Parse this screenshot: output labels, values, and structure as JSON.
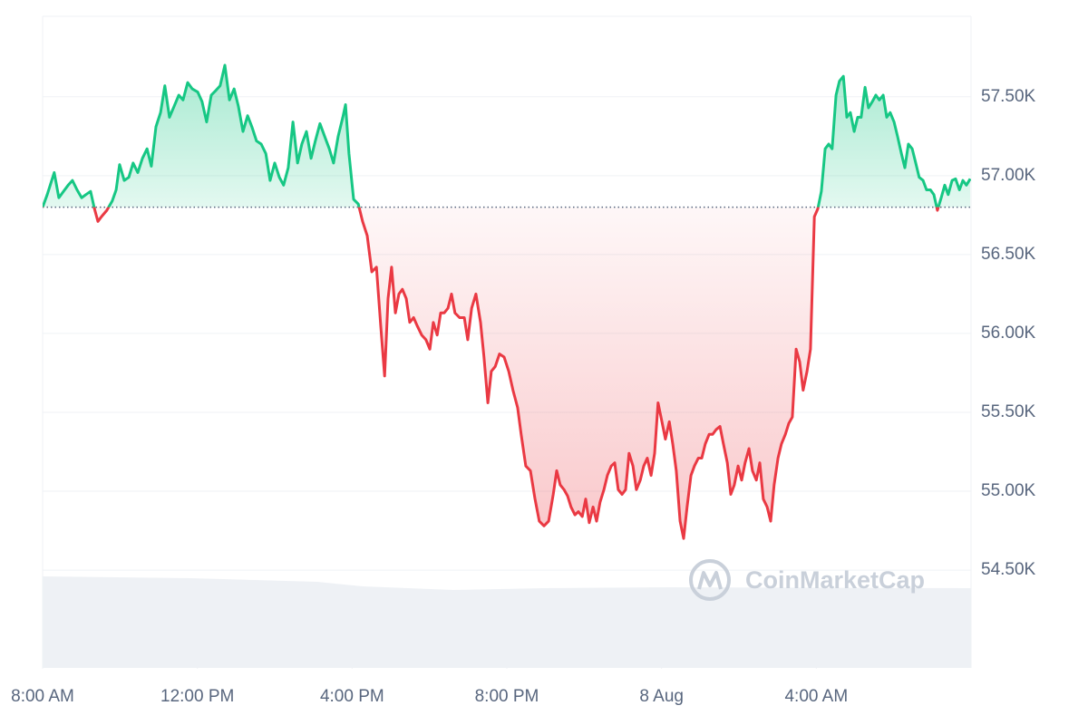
{
  "chart_data": {
    "type": "line",
    "watermark": "CoinMarketCap",
    "colors": {
      "up": "#16c784",
      "down": "#ea3943"
    },
    "baseline": 56800,
    "grid": true,
    "xlim": [
      0,
      24
    ],
    "xticks": [
      {
        "value": 0,
        "label": "8:00 AM"
      },
      {
        "value": 4,
        "label": "12:00 PM"
      },
      {
        "value": 8,
        "label": "4:00 PM"
      },
      {
        "value": 12,
        "label": "8:00 PM"
      },
      {
        "value": 16,
        "label": "8 Aug"
      },
      {
        "value": 20,
        "label": "4:00 AM"
      }
    ],
    "ylim": [
      53880,
      58010
    ],
    "yticks": [
      {
        "value": 54500,
        "label": "54.50K"
      },
      {
        "value": 55000,
        "label": "55.00K"
      },
      {
        "value": 55500,
        "label": "55.50K"
      },
      {
        "value": 56000,
        "label": "56.00K"
      },
      {
        "value": 56500,
        "label": "56.50K"
      },
      {
        "value": 57000,
        "label": "57.00K"
      },
      {
        "value": 57500,
        "label": "57.50K"
      }
    ],
    "x": [
      0,
      0.12,
      0.3,
      0.42,
      0.54,
      0.66,
      0.77,
      0.89,
      1.01,
      1.12,
      1.24,
      1.34,
      1.43,
      1.52,
      1.66,
      1.8,
      1.9,
      1.99,
      2.11,
      2.23,
      2.34,
      2.46,
      2.58,
      2.7,
      2.81,
      2.93,
      3.05,
      3.16,
      3.28,
      3.4,
      3.52,
      3.63,
      3.75,
      3.87,
      4.01,
      4.12,
      4.24,
      4.36,
      4.48,
      4.59,
      4.71,
      4.83,
      4.95,
      5.06,
      5.18,
      5.3,
      5.41,
      5.53,
      5.65,
      5.77,
      5.88,
      6,
      6.12,
      6.23,
      6.35,
      6.47,
      6.59,
      6.7,
      6.82,
      6.94,
      7.05,
      7.17,
      7.29,
      7.41,
      7.52,
      7.64,
      7.76,
      7.83,
      7.92,
      8.04,
      8.16,
      8.27,
      8.39,
      8.51,
      8.63,
      8.74,
      8.84,
      8.93,
      9.02,
      9.12,
      9.21,
      9.3,
      9.4,
      9.49,
      9.59,
      9.68,
      9.8,
      9.91,
      10.01,
      10.1,
      10.2,
      10.29,
      10.38,
      10.48,
      10.57,
      10.66,
      10.78,
      10.9,
      10.99,
      11.09,
      11.2,
      11.32,
      11.41,
      11.51,
      11.6,
      11.7,
      11.81,
      11.93,
      12.05,
      12.16,
      12.28,
      12.37,
      12.49,
      12.61,
      12.73,
      12.84,
      12.96,
      13.08,
      13.2,
      13.29,
      13.38,
      13.48,
      13.57,
      13.66,
      13.76,
      13.85,
      13.95,
      14.04,
      14.13,
      14.23,
      14.32,
      14.41,
      14.51,
      14.6,
      14.7,
      14.79,
      14.88,
      14.98,
      15.07,
      15.16,
      15.26,
      15.35,
      15.45,
      15.54,
      15.63,
      15.73,
      15.82,
      15.91,
      16.01,
      16.1,
      16.2,
      16.29,
      16.38,
      16.48,
      16.57,
      16.66,
      16.76,
      16.85,
      16.95,
      17.04,
      17.13,
      17.23,
      17.32,
      17.41,
      17.51,
      17.6,
      17.7,
      17.79,
      17.88,
      17.98,
      18.07,
      18.16,
      18.26,
      18.35,
      18.45,
      18.54,
      18.63,
      18.73,
      18.82,
      18.91,
      19.01,
      19.1,
      19.2,
      19.29,
      19.38,
      19.48,
      19.57,
      19.66,
      19.76,
      19.85,
      19.95,
      20.04,
      20.13,
      20.23,
      20.32,
      20.41,
      20.51,
      20.6,
      20.7,
      20.79,
      20.88,
      20.98,
      21.07,
      21.16,
      21.26,
      21.35,
      21.45,
      21.54,
      21.63,
      21.73,
      21.82,
      21.91,
      22.01,
      22.1,
      22.2,
      22.29,
      22.38,
      22.48,
      22.57,
      22.66,
      22.76,
      22.85,
      22.95,
      23.04,
      23.13,
      23.23,
      23.32,
      23.41,
      23.51,
      23.6,
      23.7,
      23.79,
      23.88,
      23.98
    ],
    "values": [
      56800,
      56880,
      57020,
      56860,
      56900,
      56940,
      56970,
      56910,
      56860,
      56880,
      56900,
      56790,
      56710,
      56740,
      56780,
      56840,
      56910,
      57070,
      56970,
      56990,
      57080,
      57020,
      57110,
      57170,
      57060,
      57310,
      57400,
      57570,
      57370,
      57440,
      57510,
      57480,
      57590,
      57550,
      57530,
      57470,
      57340,
      57510,
      57540,
      57570,
      57700,
      57480,
      57550,
      57440,
      57280,
      57380,
      57310,
      57220,
      57200,
      57140,
      56970,
      57080,
      56990,
      56940,
      57050,
      57340,
      57080,
      57200,
      57280,
      57110,
      57220,
      57330,
      57250,
      57170,
      57080,
      57250,
      57370,
      57450,
      57140,
      56850,
      56820,
      56710,
      56620,
      56390,
      56420,
      56050,
      55730,
      56220,
      56420,
      56130,
      56250,
      56280,
      56220,
      56070,
      56100,
      56050,
      55990,
      55960,
      55900,
      56070,
      55990,
      56130,
      56130,
      56160,
      56250,
      56130,
      56100,
      56100,
      55960,
      56160,
      56250,
      56070,
      55850,
      55560,
      55760,
      55790,
      55870,
      55850,
      55760,
      55640,
      55530,
      55360,
      55160,
      55130,
      54950,
      54810,
      54780,
      54810,
      54980,
      55130,
      55040,
      55010,
      54970,
      54900,
      54850,
      54870,
      54840,
      54950,
      54800,
      54900,
      54810,
      54930,
      55010,
      55100,
      55160,
      55180,
      55010,
      54980,
      55010,
      55240,
      55160,
      55010,
      55070,
      55160,
      55210,
      55100,
      55240,
      55560,
      55440,
      55330,
      55440,
      55300,
      55130,
      54810,
      54700,
      54900,
      55100,
      55160,
      55210,
      55210,
      55300,
      55360,
      55360,
      55390,
      55410,
      55300,
      55180,
      54980,
      55040,
      55160,
      55070,
      55180,
      55270,
      55130,
      55070,
      55180,
      54950,
      54900,
      54810,
      55040,
      55210,
      55300,
      55360,
      55430,
      55470,
      55900,
      55820,
      55640,
      55760,
      55900,
      56740,
      56790,
      56900,
      57170,
      57200,
      57170,
      57510,
      57600,
      57630,
      57370,
      57400,
      57280,
      57370,
      57370,
      57560,
      57430,
      57470,
      57510,
      57480,
      57510,
      57370,
      57400,
      57340,
      57250,
      57140,
      57050,
      57200,
      57170,
      57080,
      56990,
      56970,
      56910,
      56910,
      56880,
      56780,
      56860,
      56940,
      56880,
      56970,
      56980,
      56910,
      56970,
      56940,
      56980
    ]
  }
}
